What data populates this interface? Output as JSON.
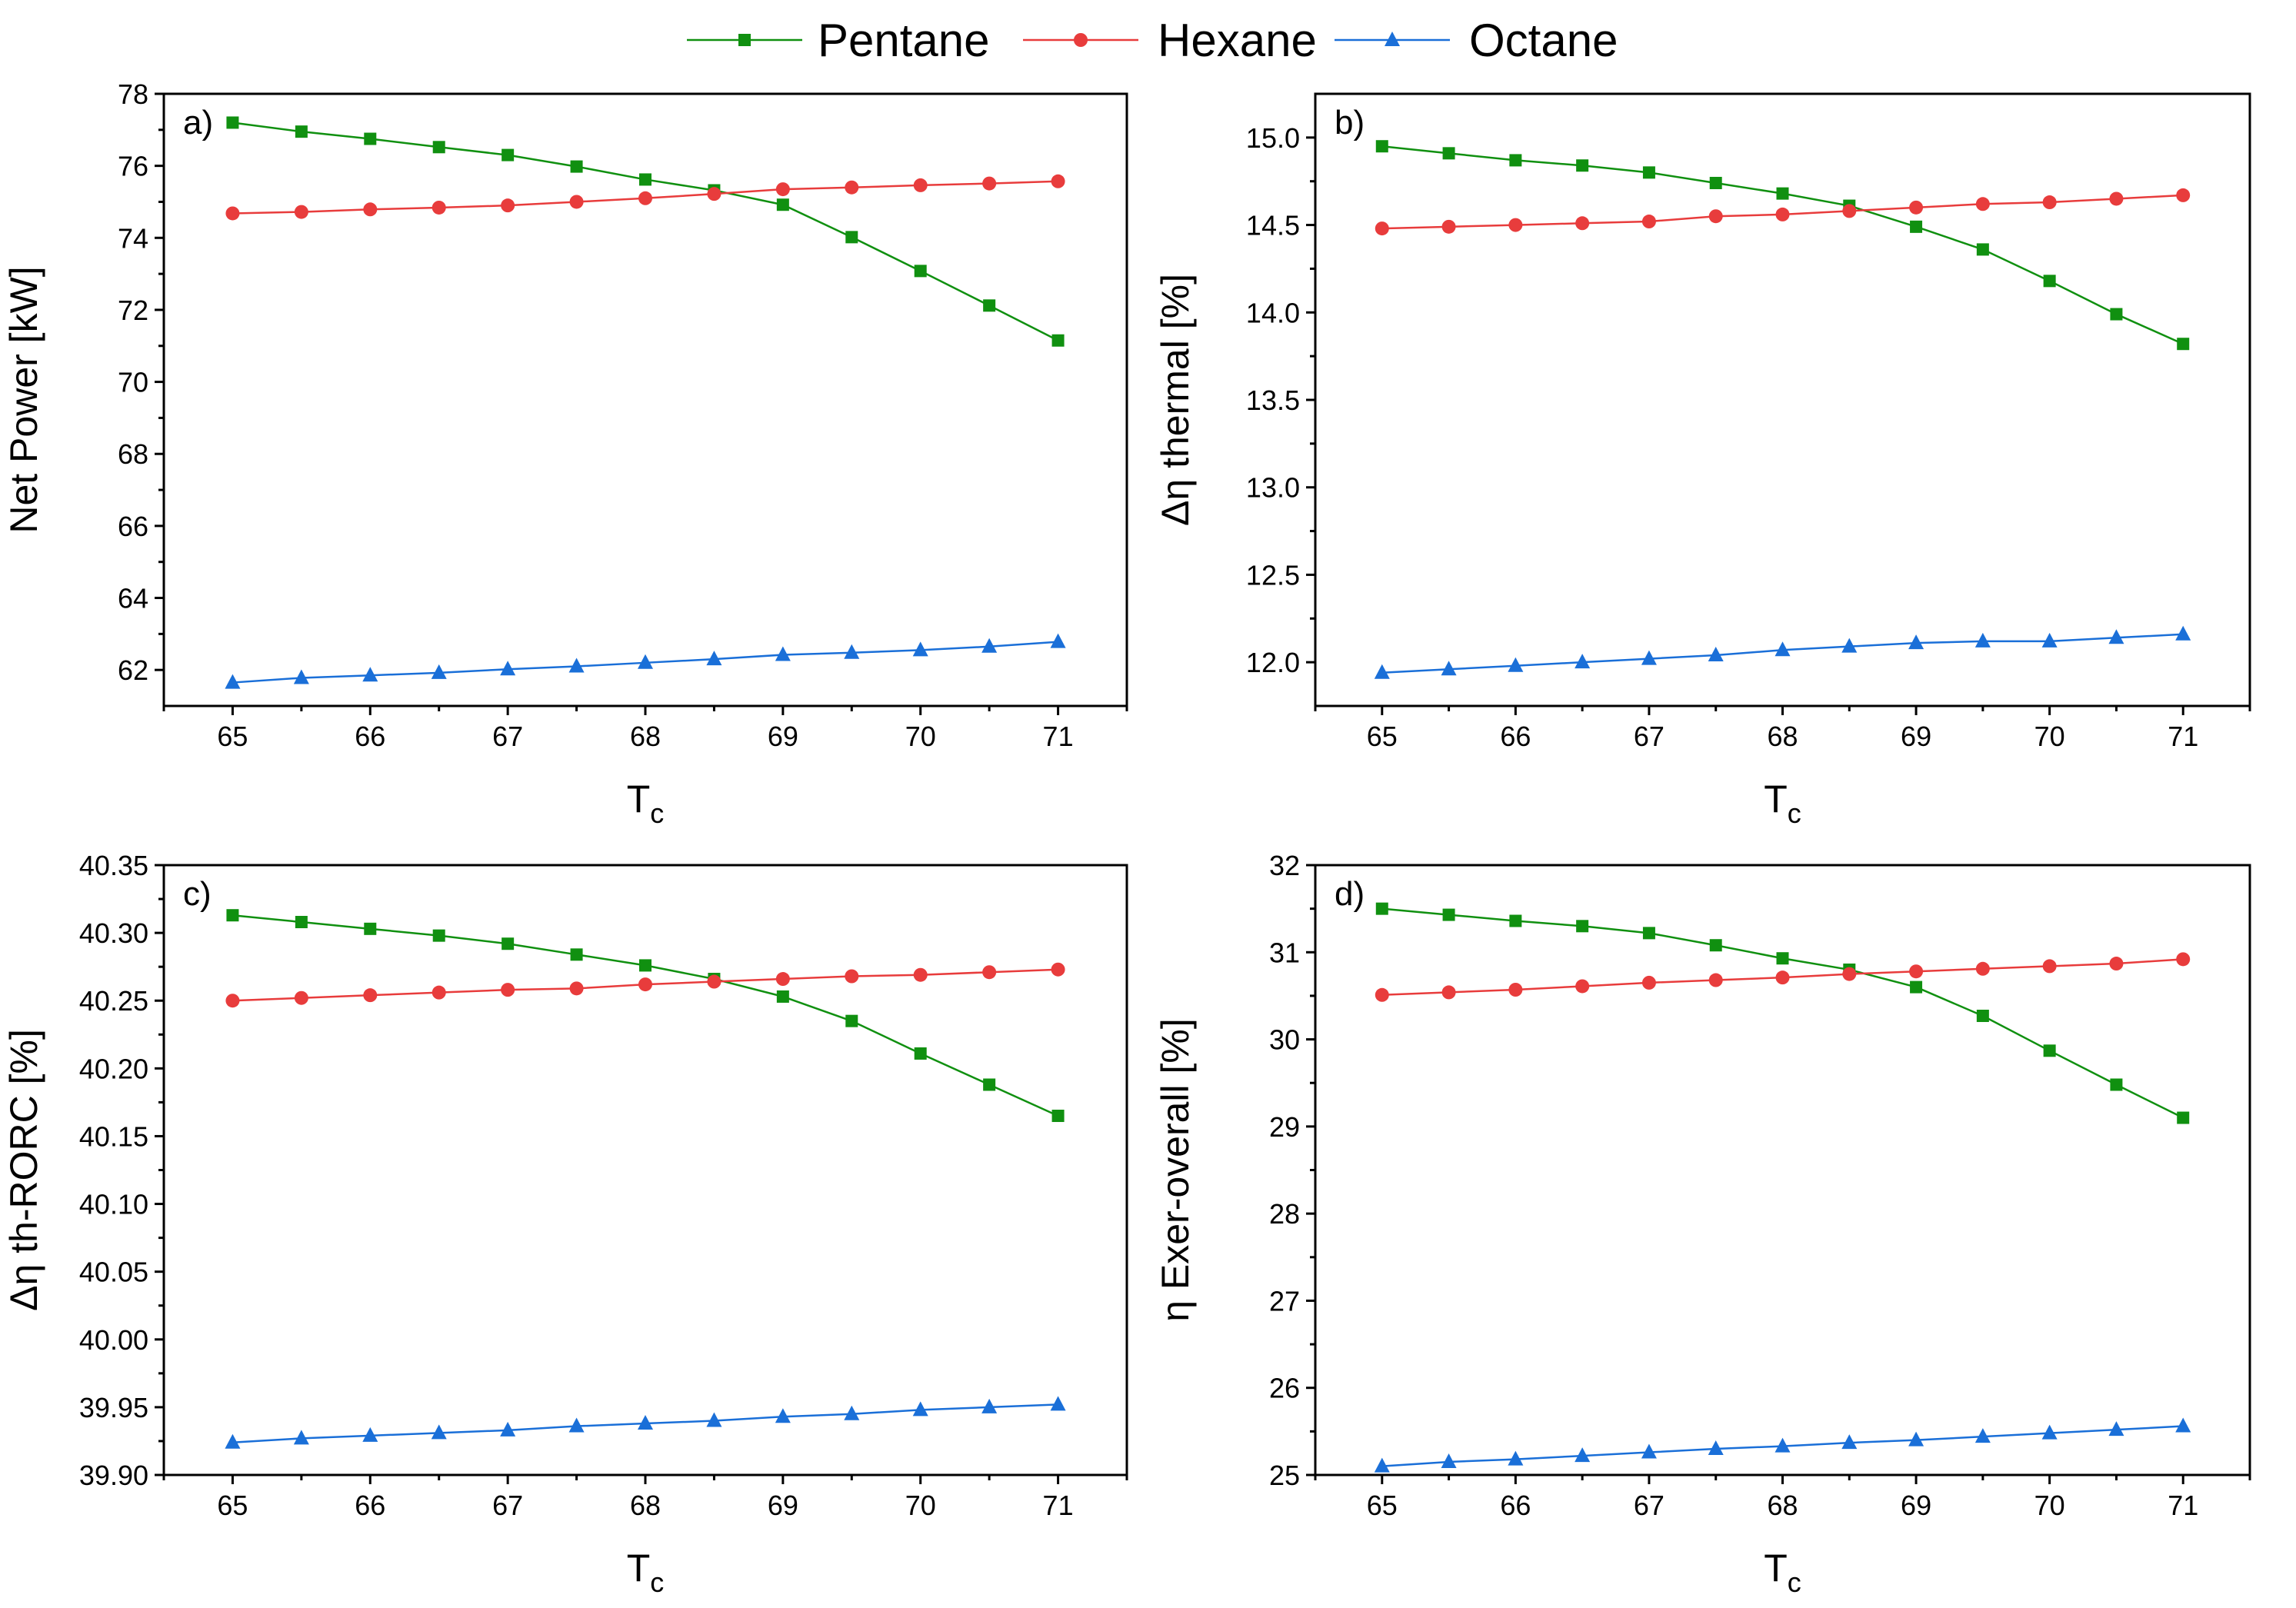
{
  "chart_data": [
    {
      "type": "line",
      "panel_label": "a)",
      "xlabel_main": "T",
      "xlabel_sub": "c",
      "ylabel": "Net Power [kW]",
      "xlim": [
        64.5,
        71.5
      ],
      "ylim": [
        61,
        78
      ],
      "xticks": [
        65,
        66,
        67,
        68,
        69,
        70,
        71
      ],
      "yticks": [
        62,
        64,
        66,
        68,
        70,
        72,
        74,
        76,
        78
      ],
      "ytick_labels": [
        "62",
        "64",
        "66",
        "68",
        "70",
        "72",
        "74",
        "76",
        "78"
      ],
      "x": [
        65,
        65.5,
        66,
        66.5,
        67,
        67.5,
        68,
        68.5,
        69,
        69.5,
        70,
        70.5,
        71
      ],
      "series": [
        {
          "name": "Pentane",
          "values": [
            77.2,
            76.95,
            76.75,
            76.52,
            76.3,
            75.98,
            75.62,
            75.32,
            74.92,
            74.02,
            73.08,
            72.12,
            71.15
          ]
        },
        {
          "name": "Hexane",
          "values": [
            74.68,
            74.72,
            74.79,
            74.84,
            74.9,
            75.0,
            75.1,
            75.22,
            75.35,
            75.4,
            75.46,
            75.51,
            75.57
          ]
        },
        {
          "name": "Octane",
          "values": [
            61.65,
            61.78,
            61.85,
            61.92,
            62.02,
            62.1,
            62.2,
            62.3,
            62.42,
            62.48,
            62.55,
            62.65,
            62.78
          ]
        }
      ]
    },
    {
      "type": "line",
      "panel_label": "b)",
      "xlabel_main": "T",
      "xlabel_sub": "c",
      "ylabel": "Δη thermal [%]",
      "xlim": [
        64.5,
        71.5
      ],
      "ylim": [
        11.75,
        15.25
      ],
      "xticks": [
        65,
        66,
        67,
        68,
        69,
        70,
        71
      ],
      "yticks": [
        12.0,
        12.5,
        13.0,
        13.5,
        14.0,
        14.5,
        15.0
      ],
      "ytick_labels": [
        "12.0",
        "12.5",
        "13.0",
        "13.5",
        "14.0",
        "14.5",
        "15.0"
      ],
      "x": [
        65,
        65.5,
        66,
        66.5,
        67,
        67.5,
        68,
        68.5,
        69,
        69.5,
        70,
        70.5,
        71
      ],
      "series": [
        {
          "name": "Pentane",
          "values": [
            14.95,
            14.91,
            14.87,
            14.84,
            14.8,
            14.74,
            14.68,
            14.61,
            14.49,
            14.36,
            14.18,
            13.99,
            13.82
          ]
        },
        {
          "name": "Hexane",
          "values": [
            14.48,
            14.49,
            14.5,
            14.51,
            14.52,
            14.55,
            14.56,
            14.58,
            14.6,
            14.62,
            14.63,
            14.65,
            14.67
          ]
        },
        {
          "name": "Octane",
          "values": [
            11.94,
            11.96,
            11.98,
            12.0,
            12.02,
            12.04,
            12.07,
            12.09,
            12.11,
            12.12,
            12.12,
            12.14,
            12.16
          ]
        }
      ]
    },
    {
      "type": "line",
      "panel_label": "c)",
      "xlabel_main": "T",
      "xlabel_sub": "c",
      "ylabel": "Δη th-RORC [%]",
      "xlim": [
        64.5,
        71.5
      ],
      "ylim": [
        39.9,
        40.35
      ],
      "xticks": [
        65,
        66,
        67,
        68,
        69,
        70,
        71
      ],
      "yticks": [
        39.9,
        39.95,
        40.0,
        40.05,
        40.1,
        40.15,
        40.2,
        40.25,
        40.3,
        40.35
      ],
      "ytick_labels": [
        "39.90",
        "39.95",
        "40.00",
        "40.05",
        "40.10",
        "40.15",
        "40.20",
        "40.25",
        "40.30",
        "40.35"
      ],
      "x": [
        65,
        65.5,
        66,
        66.5,
        67,
        67.5,
        68,
        68.5,
        69,
        69.5,
        70,
        70.5,
        71
      ],
      "series": [
        {
          "name": "Pentane",
          "values": [
            40.313,
            40.308,
            40.303,
            40.298,
            40.292,
            40.284,
            40.276,
            40.266,
            40.253,
            40.235,
            40.211,
            40.188,
            40.165
          ]
        },
        {
          "name": "Hexane",
          "values": [
            40.25,
            40.252,
            40.254,
            40.256,
            40.258,
            40.259,
            40.262,
            40.264,
            40.266,
            40.268,
            40.269,
            40.271,
            40.273
          ]
        },
        {
          "name": "Octane",
          "values": [
            39.924,
            39.927,
            39.929,
            39.931,
            39.933,
            39.936,
            39.938,
            39.94,
            39.943,
            39.945,
            39.948,
            39.95,
            39.952
          ]
        }
      ]
    },
    {
      "type": "line",
      "panel_label": "d)",
      "xlabel_main": "T",
      "xlabel_sub": "c",
      "ylabel": "η Exer-overall [%]",
      "xlim": [
        64.5,
        71.5
      ],
      "ylim": [
        25,
        32
      ],
      "xticks": [
        65,
        66,
        67,
        68,
        69,
        70,
        71
      ],
      "yticks": [
        25,
        26,
        27,
        28,
        29,
        30,
        31,
        32
      ],
      "ytick_labels": [
        "25",
        "26",
        "27",
        "28",
        "29",
        "30",
        "31",
        "32"
      ],
      "x": [
        65,
        65.5,
        66,
        66.5,
        67,
        67.5,
        68,
        68.5,
        69,
        69.5,
        70,
        70.5,
        71
      ],
      "series": [
        {
          "name": "Pentane",
          "values": [
            31.5,
            31.43,
            31.36,
            31.3,
            31.22,
            31.08,
            30.93,
            30.8,
            30.6,
            30.27,
            29.87,
            29.48,
            29.1
          ]
        },
        {
          "name": "Hexane",
          "values": [
            30.51,
            30.54,
            30.57,
            30.61,
            30.65,
            30.68,
            30.71,
            30.75,
            30.78,
            30.81,
            30.84,
            30.87,
            30.92
          ]
        },
        {
          "name": "Octane",
          "values": [
            25.1,
            25.15,
            25.18,
            25.22,
            25.26,
            25.3,
            25.33,
            25.37,
            25.4,
            25.44,
            25.48,
            25.52,
            25.56
          ]
        }
      ]
    }
  ],
  "legend": [
    {
      "name": "Pentane",
      "color": "#109010",
      "marker": "square"
    },
    {
      "name": "Hexane",
      "color": "#e83c3c",
      "marker": "circle"
    },
    {
      "name": "Octane",
      "color": "#1a6fd8",
      "marker": "triangle"
    }
  ]
}
